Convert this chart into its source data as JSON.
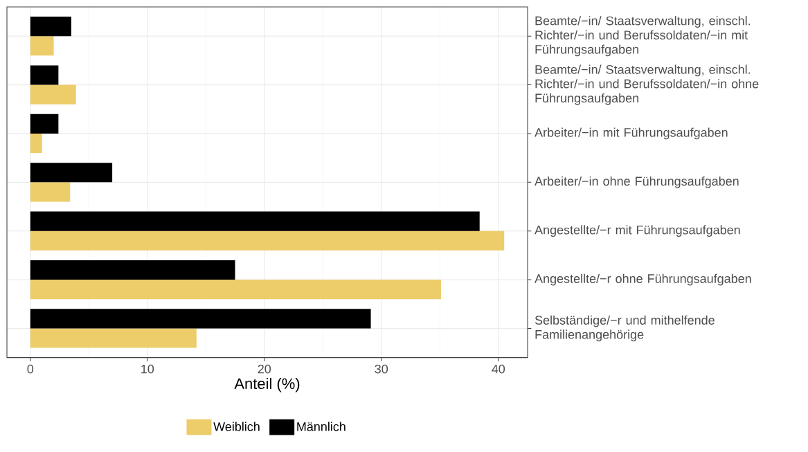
{
  "chart_data": {
    "type": "bar",
    "orientation": "horizontal",
    "xlabel": "Anteil (%)",
    "categories": [
      "Beamte/−in/ Staatsverwaltung, einschl. Richter/−in und Berufssoldaten/−in mit Führungsaufgaben",
      "Beamte/−in/ Staatsverwaltung, einschl. Richter/−in und Berufssoldaten/−in ohne Führungsaufgaben",
      "Arbeiter/−in mit Führungsaufgaben",
      "Arbeiter/−in ohne Führungsaufgaben",
      "Angestellte/−r mit Führungsaufgaben",
      "Angestellte/−r ohne Führungsaufgaben",
      "Selbständige/−r und mithelfende Familienangehörige"
    ],
    "series": [
      {
        "name": "Weiblich",
        "color": "#edcd6a",
        "values": [
          2.0,
          3.9,
          1.0,
          3.4,
          40.5,
          35.1,
          14.2
        ]
      },
      {
        "name": "Männlich",
        "color": "#000000",
        "values": [
          3.5,
          2.4,
          2.4,
          7.0,
          38.4,
          17.5,
          29.1
        ]
      }
    ],
    "xlim": [
      -2,
      42.5
    ],
    "xticks": [
      0,
      10,
      20,
      30,
      40
    ],
    "grid": true,
    "legend": "bottom"
  }
}
